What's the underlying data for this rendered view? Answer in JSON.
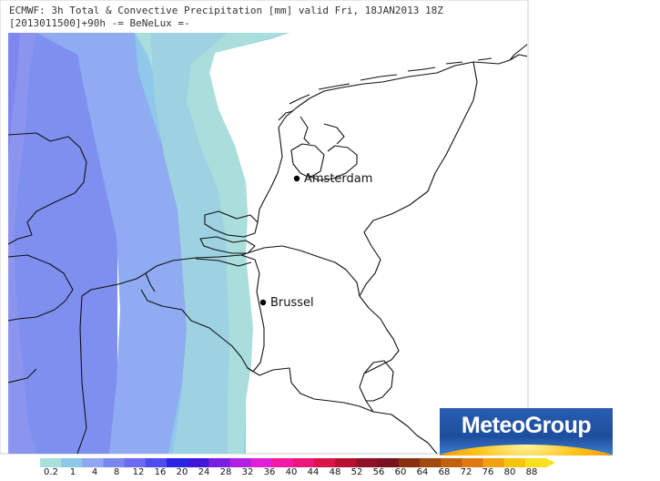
{
  "header": {
    "line1": "ECMWF: 3h Total & Convective Precipitation [mm] valid Fri, 18JAN2013 18Z",
    "line2": "[2013011500]+90h  -= BeNeLux =-"
  },
  "cities": [
    {
      "name": "Amsterdam"
    },
    {
      "name": "Brussel"
    }
  ],
  "logo": {
    "text": "MeteoGroup"
  },
  "legend": {
    "labels": [
      "0.2",
      "1",
      "4",
      "8",
      "12",
      "16",
      "20",
      "24",
      "28",
      "32",
      "36",
      "40",
      "44",
      "48",
      "52",
      "56",
      "60",
      "64",
      "68",
      "72",
      "76",
      "80",
      "88"
    ],
    "colors": [
      "#a9e0dc",
      "#8ec8e8",
      "#8fa6f2",
      "#7a86f0",
      "#6a6af2",
      "#4c4cf0",
      "#2a24e6",
      "#3e18d6",
      "#7a1ee0",
      "#b020e2",
      "#e020d8",
      "#f01aa6",
      "#ec1678",
      "#d81448",
      "#b81030",
      "#901026",
      "#7a1020",
      "#8a3010",
      "#a04a10",
      "#c06010",
      "#e07a10",
      "#f0a010",
      "#f6c40c",
      "#f6e020"
    ]
  }
}
